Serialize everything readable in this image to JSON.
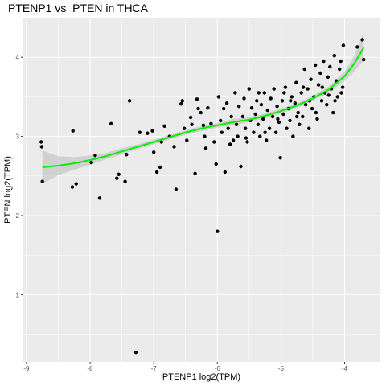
{
  "chart_data": {
    "type": "scatter",
    "title": "PTENP1 vs  PTEN in THCA",
    "xlabel": "PTENP1 log2(TPM)",
    "ylabel": "PTEN log2(TPM)",
    "xlim": [
      -9.05,
      -3.45
    ],
    "ylim": [
      0.15,
      4.5
    ],
    "x_ticks": [
      {
        "value": -9,
        "label": "-9"
      },
      {
        "value": -8,
        "label": "-8"
      },
      {
        "value": -7,
        "label": "-7"
      },
      {
        "value": -6,
        "label": "-6"
      },
      {
        "value": -5,
        "label": "-5"
      },
      {
        "value": -4,
        "label": "-4"
      }
    ],
    "y_ticks": [
      {
        "value": 1,
        "label": "1"
      },
      {
        "value": 2,
        "label": "2"
      },
      {
        "value": 3,
        "label": "3"
      },
      {
        "value": 4,
        "label": "4"
      }
    ],
    "grid": true,
    "point_color": "#000000",
    "smooth_color": "#00ee00",
    "band_color": "#c8c8c8",
    "panel_color": "#ebebeb",
    "smooth": {
      "x": [
        -8.75,
        -8.5,
        -8.25,
        -8.0,
        -7.75,
        -7.5,
        -7.25,
        -7.0,
        -6.75,
        -6.5,
        -6.25,
        -6.0,
        -5.75,
        -5.5,
        -5.25,
        -5.0,
        -4.75,
        -4.5,
        -4.25,
        -4.0,
        -3.85,
        -3.7
      ],
      "y": [
        2.61,
        2.63,
        2.66,
        2.7,
        2.75,
        2.81,
        2.87,
        2.93,
        2.99,
        3.05,
        3.1,
        3.14,
        3.18,
        3.21,
        3.26,
        3.32,
        3.39,
        3.48,
        3.59,
        3.76,
        3.92,
        4.12
      ],
      "lower": [
        2.4,
        2.51,
        2.58,
        2.64,
        2.71,
        2.77,
        2.84,
        2.9,
        2.96,
        3.02,
        3.07,
        3.11,
        3.14,
        3.18,
        3.23,
        3.29,
        3.36,
        3.45,
        3.55,
        3.7,
        3.82,
        3.96
      ],
      "upper": [
        2.82,
        2.75,
        2.74,
        2.76,
        2.79,
        2.85,
        2.9,
        2.96,
        3.02,
        3.08,
        3.13,
        3.17,
        3.22,
        3.24,
        3.29,
        3.35,
        3.42,
        3.51,
        3.63,
        3.82,
        4.02,
        4.32
      ]
    },
    "points": [
      [
        -8.77,
        2.93
      ],
      [
        -8.76,
        2.87
      ],
      [
        -8.75,
        2.43
      ],
      [
        -8.27,
        3.07
      ],
      [
        -8.28,
        2.36
      ],
      [
        -8.22,
        2.4
      ],
      [
        -7.98,
        2.67
      ],
      [
        -7.92,
        2.76
      ],
      [
        -7.85,
        2.22
      ],
      [
        -7.67,
        3.16
      ],
      [
        -7.58,
        2.47
      ],
      [
        -7.55,
        2.52
      ],
      [
        -7.45,
        2.43
      ],
      [
        -7.43,
        2.77
      ],
      [
        -7.38,
        3.45
      ],
      [
        -7.22,
        3.05
      ],
      [
        -7.1,
        3.04
      ],
      [
        -7.02,
        3.07
      ],
      [
        -7.0,
        2.8
      ],
      [
        -6.95,
        2.55
      ],
      [
        -6.9,
        2.61
      ],
      [
        -6.88,
        2.93
      ],
      [
        -6.83,
        3.13
      ],
      [
        -6.75,
        3.0
      ],
      [
        -6.68,
        2.87
      ],
      [
        -6.65,
        2.33
      ],
      [
        -6.57,
        3.41
      ],
      [
        -6.55,
        3.45
      ],
      [
        -6.52,
        3.1
      ],
      [
        -6.48,
        2.95
      ],
      [
        -6.42,
        3.24
      ],
      [
        -6.4,
        3.15
      ],
      [
        -6.35,
        2.53
      ],
      [
        -6.32,
        3.47
      ],
      [
        -6.3,
        3.35
      ],
      [
        -6.26,
        3.3
      ],
      [
        -6.22,
        3.14
      ],
      [
        -6.2,
        3.0
      ],
      [
        -6.18,
        2.85
      ],
      [
        -6.15,
        3.36
      ],
      [
        -6.1,
        3.16
      ],
      [
        -6.05,
        2.93
      ],
      [
        -6.02,
        2.65
      ],
      [
        -6.0,
        1.8
      ],
      [
        -5.98,
        3.5
      ],
      [
        -5.95,
        3.2
      ],
      [
        -5.93,
        3.05
      ],
      [
        -5.9,
        3.35
      ],
      [
        -5.88,
        2.55
      ],
      [
        -5.85,
        3.42
      ],
      [
        -5.83,
        3.1
      ],
      [
        -5.8,
        2.9
      ],
      [
        -5.78,
        3.25
      ],
      [
        -5.75,
        2.95
      ],
      [
        -5.72,
        3.55
      ],
      [
        -5.7,
        3.15
      ],
      [
        -5.68,
        3.0
      ],
      [
        -5.66,
        3.38
      ],
      [
        -5.63,
        2.62
      ],
      [
        -5.6,
        3.25
      ],
      [
        -5.58,
        3.48
      ],
      [
        -5.56,
        3.1
      ],
      [
        -5.53,
        2.93
      ],
      [
        -5.5,
        3.6
      ],
      [
        -5.48,
        3.2
      ],
      [
        -5.46,
        3.36
      ],
      [
        -5.43,
        3.05
      ],
      [
        -5.4,
        3.28
      ],
      [
        -5.38,
        3.45
      ],
      [
        -5.36,
        3.15
      ],
      [
        -5.33,
        3.0
      ],
      [
        -5.31,
        3.4
      ],
      [
        -5.28,
        3.22
      ],
      [
        -5.26,
        3.55
      ],
      [
        -5.23,
        2.95
      ],
      [
        -5.21,
        3.33
      ],
      [
        -5.18,
        3.1
      ],
      [
        -5.16,
        3.48
      ],
      [
        -5.13,
        3.25
      ],
      [
        -5.11,
        3.6
      ],
      [
        -5.08,
        3.05
      ],
      [
        -5.06,
        3.38
      ],
      [
        -5.03,
        3.18
      ],
      [
        -5.01,
        2.73
      ],
      [
        -4.98,
        3.45
      ],
      [
        -4.96,
        3.28
      ],
      [
        -4.93,
        3.62
      ],
      [
        -4.91,
        3.1
      ],
      [
        -4.88,
        3.35
      ],
      [
        -4.86,
        3.2
      ],
      [
        -4.83,
        3.5
      ],
      [
        -4.81,
        3.0
      ],
      [
        -4.78,
        3.42
      ],
      [
        -4.76,
        3.68
      ],
      [
        -4.73,
        3.3
      ],
      [
        -4.71,
        3.15
      ],
      [
        -4.68,
        3.55
      ],
      [
        -4.66,
        3.25
      ],
      [
        -4.63,
        3.85
      ],
      [
        -4.61,
        3.4
      ],
      [
        -4.58,
        3.6
      ],
      [
        -4.56,
        3.1
      ],
      [
        -4.53,
        3.72
      ],
      [
        -4.51,
        3.35
      ],
      [
        -4.48,
        3.5
      ],
      [
        -4.46,
        3.9
      ],
      [
        -4.43,
        3.22
      ],
      [
        -4.41,
        3.65
      ],
      [
        -4.38,
        3.8
      ],
      [
        -4.36,
        3.45
      ],
      [
        -4.33,
        3.95
      ],
      [
        -4.31,
        3.55
      ],
      [
        -4.28,
        3.4
      ],
      [
        -4.26,
        3.75
      ],
      [
        -4.23,
        3.88
      ],
      [
        -4.21,
        3.6
      ],
      [
        -4.18,
        3.3
      ],
      [
        -4.16,
        4.02
      ],
      [
        -4.13,
        3.7
      ],
      [
        -4.11,
        3.5
      ],
      [
        -4.08,
        3.85
      ],
      [
        -4.06,
        3.95
      ],
      [
        -4.03,
        3.62
      ],
      [
        -4.02,
        4.15
      ],
      [
        -3.8,
        4.13
      ],
      [
        -3.72,
        4.22
      ],
      [
        -3.7,
        3.97
      ],
      [
        -7.28,
        0.27
      ],
      [
        -5.55,
        2.98
      ],
      [
        -5.35,
        3.55
      ],
      [
        -5.25,
        3.05
      ],
      [
        -5.05,
        3.22
      ],
      [
        -4.95,
        3.55
      ],
      [
        -4.85,
        3.45
      ],
      [
        -4.75,
        3.25
      ],
      [
        -4.65,
        3.62
      ],
      [
        -4.55,
        3.45
      ],
      [
        -4.45,
        3.3
      ],
      [
        -4.35,
        3.62
      ],
      [
        -4.25,
        3.52
      ],
      [
        -4.15,
        3.45
      ],
      [
        -4.05,
        3.55
      ]
    ]
  }
}
